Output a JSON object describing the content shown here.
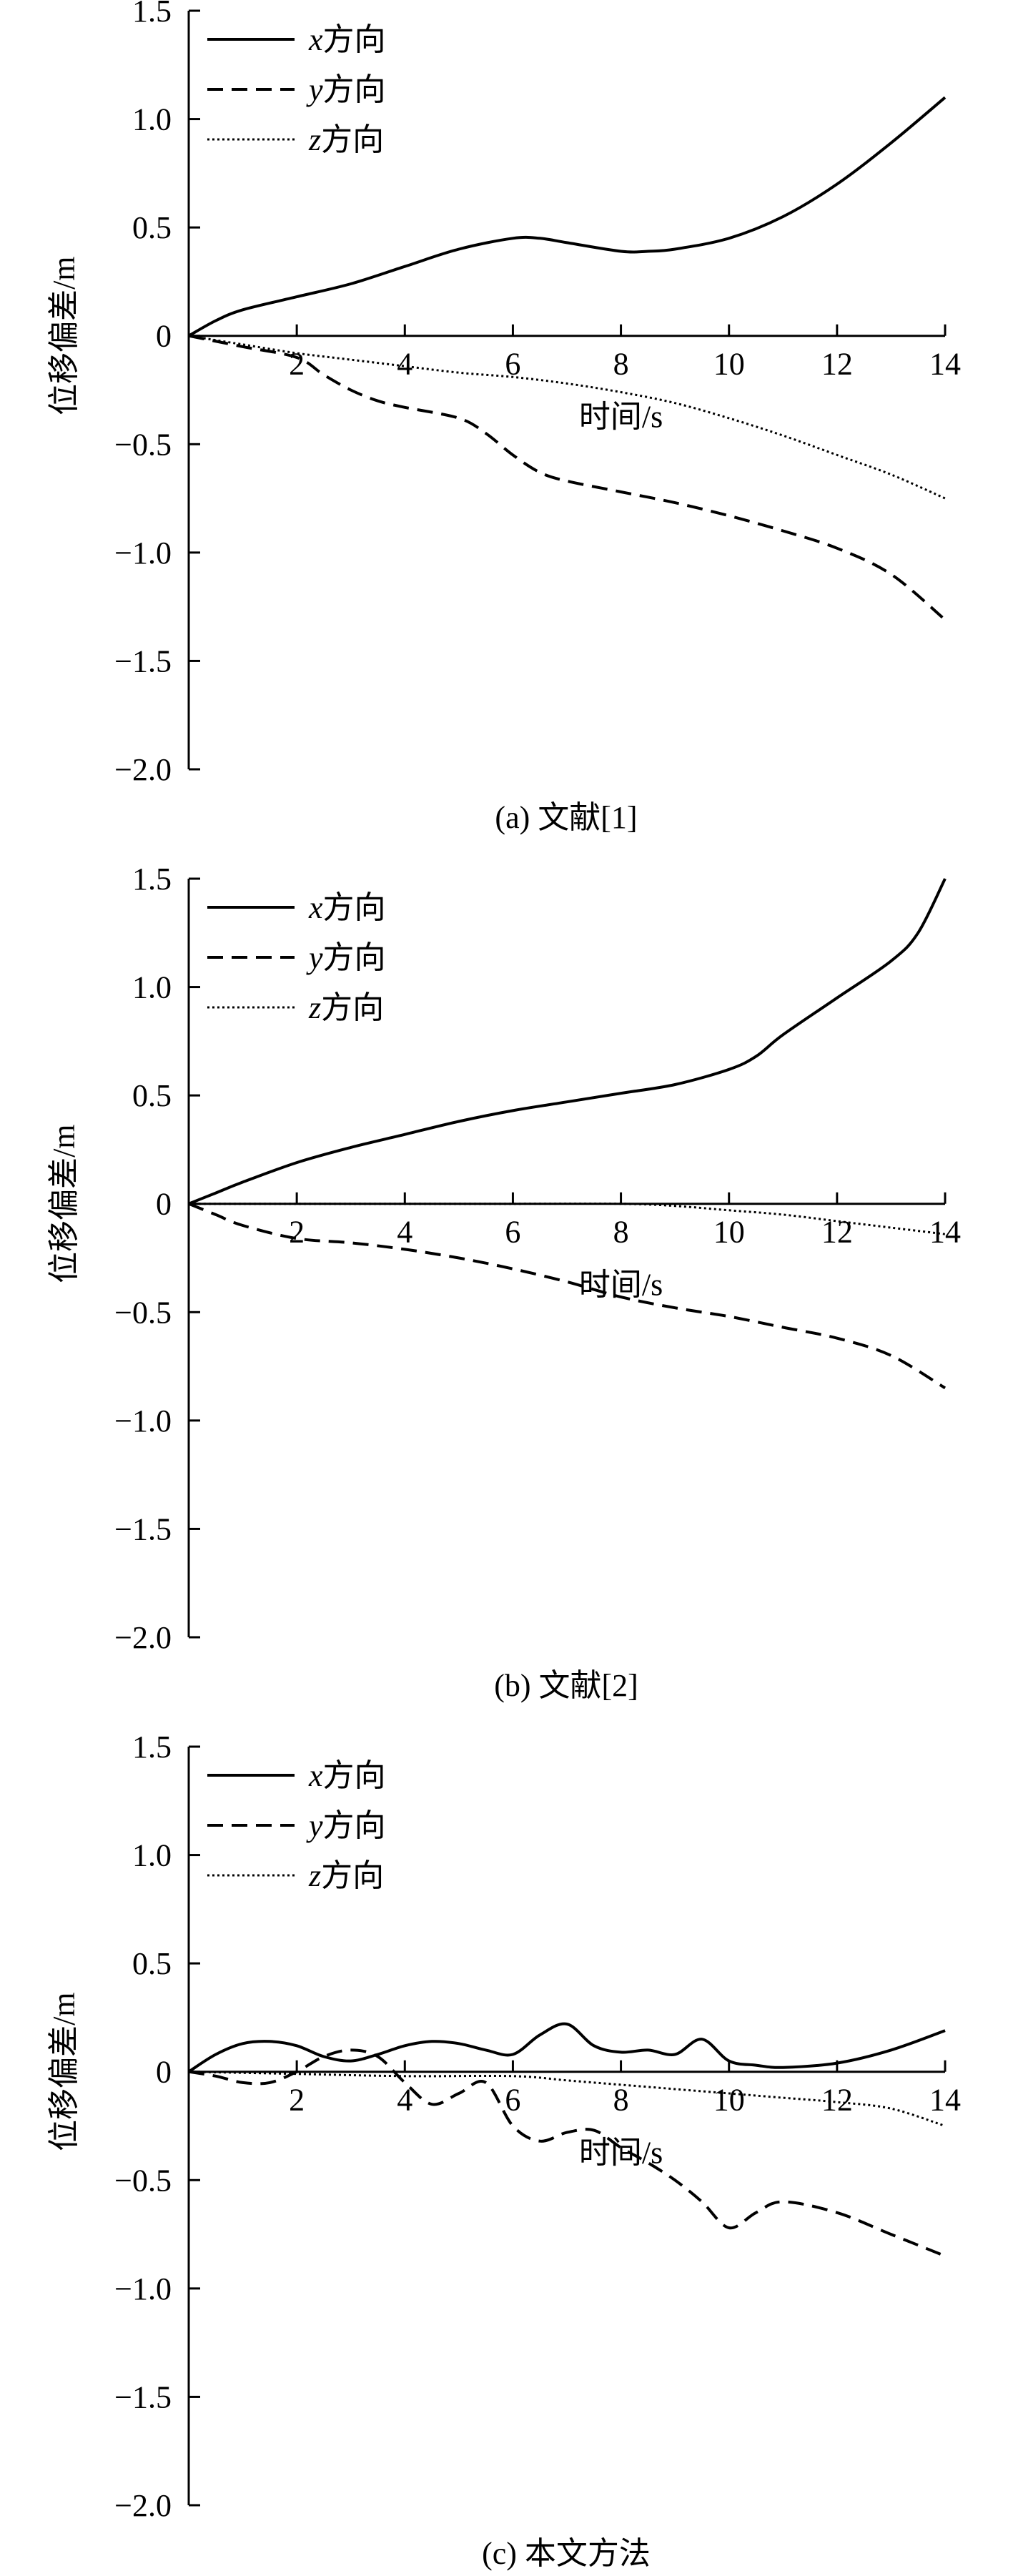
{
  "chart_data": [
    {
      "type": "line",
      "caption": "(a) 文献[1]",
      "xlabel": "时间/s",
      "ylabel": "位移偏差/m",
      "xlim": [
        0,
        14
      ],
      "ylim": [
        -2.0,
        1.5
      ],
      "xticks": [
        2,
        4,
        6,
        8,
        10,
        12,
        14
      ],
      "xtick_labels": [
        "2",
        "4",
        "6",
        "8",
        "10",
        "12",
        "14"
      ],
      "yticks": [
        1.5,
        1.0,
        0.5,
        0,
        -0.5,
        -1.0,
        -1.5,
        -2.0
      ],
      "ytick_labels": [
        "1.5",
        "1.0",
        "0.5",
        "0",
        "−0.5",
        "−1.0",
        "−1.5",
        "−2.0"
      ],
      "grid": false,
      "legend_position": "top-left",
      "series": [
        {
          "name": "x方向",
          "style": "solid",
          "x": [
            0,
            0.5,
            1,
            2,
            3,
            4,
            5,
            6,
            6.5,
            7,
            8,
            8.5,
            9,
            10,
            11,
            12,
            13,
            14
          ],
          "y": [
            0,
            0.07,
            0.12,
            0.18,
            0.24,
            0.32,
            0.4,
            0.45,
            0.45,
            0.43,
            0.39,
            0.39,
            0.4,
            0.45,
            0.55,
            0.7,
            0.89,
            1.1
          ]
        },
        {
          "name": "y方向",
          "style": "dashed",
          "x": [
            0,
            1,
            2,
            2.5,
            3,
            3.5,
            4,
            5,
            5.5,
            6,
            6.5,
            7,
            8,
            9,
            10,
            11,
            12,
            13,
            14
          ],
          "y": [
            0,
            -0.05,
            -0.1,
            -0.18,
            -0.25,
            -0.3,
            -0.33,
            -0.38,
            -0.45,
            -0.55,
            -0.63,
            -0.67,
            -0.72,
            -0.77,
            -0.83,
            -0.9,
            -0.98,
            -1.1,
            -1.31
          ]
        },
        {
          "name": "z方向",
          "style": "dotted",
          "x": [
            0,
            1,
            2,
            3,
            4,
            5,
            6,
            7,
            8,
            9,
            10,
            11,
            12,
            13,
            14
          ],
          "y": [
            0,
            -0.04,
            -0.08,
            -0.11,
            -0.14,
            -0.17,
            -0.19,
            -0.22,
            -0.26,
            -0.31,
            -0.38,
            -0.46,
            -0.55,
            -0.64,
            -0.75
          ]
        }
      ]
    },
    {
      "type": "line",
      "caption": "(b) 文献[2]",
      "xlabel": "时间/s",
      "ylabel": "位移偏差/m",
      "xlim": [
        0,
        14
      ],
      "ylim": [
        -2.0,
        1.5
      ],
      "xticks": [
        2,
        4,
        6,
        8,
        10,
        12,
        14
      ],
      "xtick_labels": [
        "2",
        "4",
        "6",
        "8",
        "10",
        "12",
        "14"
      ],
      "yticks": [
        1.5,
        1.0,
        0.5,
        0,
        -0.5,
        -1.0,
        -1.5,
        -2.0
      ],
      "ytick_labels": [
        "1.5",
        "1.0",
        "0.5",
        "0",
        "−0.5",
        "−1.0",
        "−1.5",
        "−2.0"
      ],
      "grid": false,
      "legend_position": "top-left",
      "series": [
        {
          "name": "x方向",
          "style": "solid",
          "x": [
            0,
            0.5,
            1,
            2,
            3,
            4,
            5,
            6,
            7,
            8,
            9,
            10,
            10.5,
            11,
            12,
            13,
            13.5,
            14
          ],
          "y": [
            0,
            0.05,
            0.1,
            0.19,
            0.26,
            0.32,
            0.38,
            0.43,
            0.47,
            0.51,
            0.55,
            0.62,
            0.68,
            0.78,
            0.95,
            1.12,
            1.25,
            1.5
          ]
        },
        {
          "name": "y方向",
          "style": "dashed",
          "x": [
            0,
            0.5,
            1,
            2,
            3,
            4,
            5,
            6,
            7,
            8,
            9,
            10,
            11,
            12,
            13,
            14
          ],
          "y": [
            0,
            -0.05,
            -0.1,
            -0.16,
            -0.18,
            -0.21,
            -0.25,
            -0.3,
            -0.36,
            -0.43,
            -0.48,
            -0.52,
            -0.57,
            -0.62,
            -0.7,
            -0.85
          ]
        },
        {
          "name": "z方向",
          "style": "dotted",
          "x": [
            0,
            2,
            4,
            6,
            8,
            9,
            10,
            11,
            12,
            13,
            14
          ],
          "y": [
            0,
            0,
            0,
            0,
            0,
            -0.01,
            -0.03,
            -0.05,
            -0.08,
            -0.11,
            -0.14
          ]
        }
      ]
    },
    {
      "type": "line",
      "caption": "(c) 本文方法",
      "xlabel": "时间/s",
      "ylabel": "位移偏差/m",
      "xlim": [
        0,
        14
      ],
      "ylim": [
        -2.0,
        1.5
      ],
      "xticks": [
        2,
        4,
        6,
        8,
        10,
        12,
        14
      ],
      "xtick_labels": [
        "2",
        "4",
        "6",
        "8",
        "10",
        "12",
        "14"
      ],
      "yticks": [
        1.5,
        1.0,
        0.5,
        0,
        -0.5,
        -1.0,
        -1.5,
        -2.0
      ],
      "ytick_labels": [
        "1.5",
        "1.0",
        "0.5",
        "0",
        "−0.5",
        "−1.0",
        "−1.5",
        "−2.0"
      ],
      "grid": false,
      "legend_position": "top-left",
      "series": [
        {
          "name": "x方向",
          "style": "solid",
          "x": [
            0,
            0.5,
            1,
            1.5,
            2,
            2.5,
            3,
            3.5,
            4,
            4.5,
            5,
            5.5,
            6,
            6.5,
            7,
            7.5,
            8,
            8.5,
            9,
            9.5,
            10,
            10.5,
            11,
            12,
            13,
            14
          ],
          "y": [
            0,
            0.08,
            0.13,
            0.14,
            0.12,
            0.07,
            0.05,
            0.08,
            0.12,
            0.14,
            0.13,
            0.1,
            0.08,
            0.17,
            0.22,
            0.12,
            0.09,
            0.1,
            0.08,
            0.15,
            0.05,
            0.03,
            0.02,
            0.04,
            0.1,
            0.19
          ]
        },
        {
          "name": "y方向",
          "style": "dashed",
          "x": [
            0,
            0.5,
            1,
            1.5,
            2,
            2.5,
            3,
            3.5,
            4,
            4.5,
            5,
            5.5,
            6,
            6.5,
            7,
            7.5,
            8,
            8.5,
            9,
            9.5,
            10,
            10.5,
            11,
            12,
            13,
            14
          ],
          "y": [
            0,
            -0.02,
            -0.05,
            -0.05,
            0.0,
            0.07,
            0.1,
            0.07,
            -0.05,
            -0.15,
            -0.1,
            -0.05,
            -0.25,
            -0.32,
            -0.28,
            -0.27,
            -0.35,
            -0.42,
            -0.5,
            -0.6,
            -0.72,
            -0.65,
            -0.6,
            -0.65,
            -0.75,
            -0.85
          ]
        },
        {
          "name": "z方向",
          "style": "dotted",
          "x": [
            0,
            2,
            4,
            6,
            7,
            8,
            9,
            10,
            11,
            12,
            13,
            14
          ],
          "y": [
            0,
            -0.01,
            -0.02,
            -0.02,
            -0.04,
            -0.06,
            -0.08,
            -0.1,
            -0.12,
            -0.14,
            -0.17,
            -0.25
          ]
        }
      ]
    }
  ]
}
